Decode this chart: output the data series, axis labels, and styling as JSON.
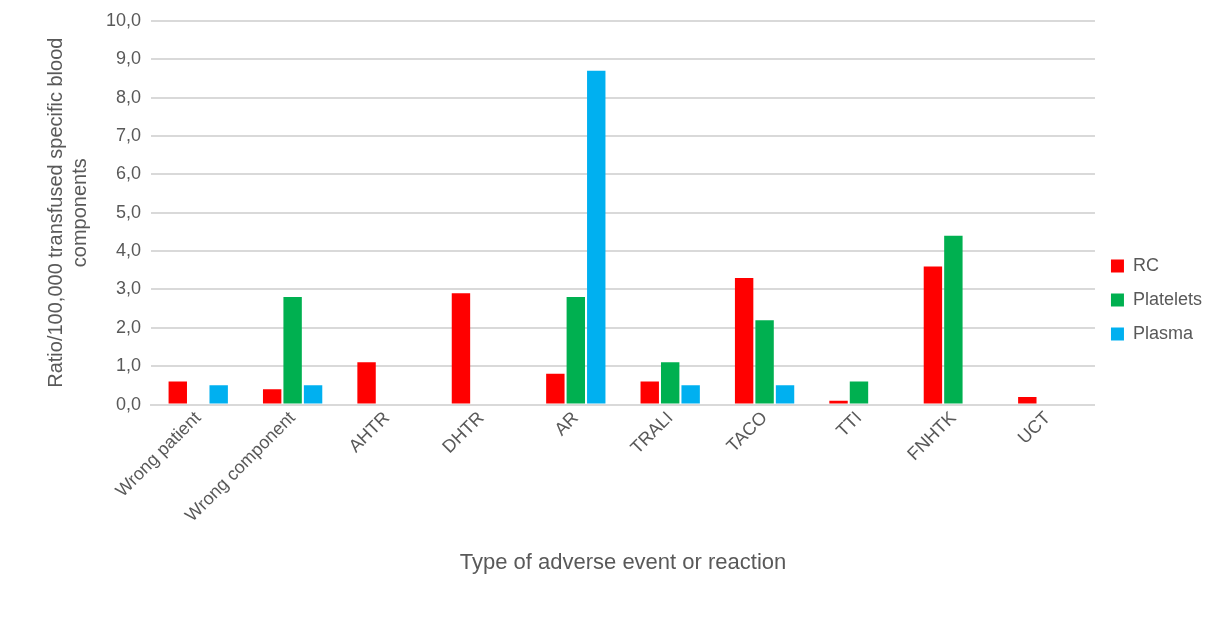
{
  "chart_data": {
    "type": "bar",
    "xlabel": "Type of adverse event or reaction",
    "ylabel": "Ratio/100,000 transfused specific blood components",
    "categories": [
      "Wrong patient",
      "Wrong component",
      "AHTR",
      "DHTR",
      "AR",
      "TRALI",
      "TACO",
      "TTI",
      "FNHTK",
      "UCT"
    ],
    "series": [
      {
        "name": "RC",
        "color": "#ff0000",
        "values": [
          0.6,
          0.4,
          1.1,
          2.9,
          0.8,
          0.6,
          3.3,
          0.1,
          3.6,
          0.2
        ]
      },
      {
        "name": "Platelets",
        "color": "#00b050",
        "values": [
          null,
          2.8,
          null,
          null,
          2.8,
          1.1,
          2.2,
          0.6,
          4.4,
          null
        ]
      },
      {
        "name": "Plasma",
        "color": "#00b0f0",
        "values": [
          0.5,
          0.5,
          null,
          null,
          8.7,
          0.5,
          0.5,
          null,
          null,
          null
        ]
      }
    ],
    "ylim": [
      0,
      10
    ],
    "yticks": [
      {
        "value": 0,
        "label": "0,0"
      },
      {
        "value": 1,
        "label": "1,0"
      },
      {
        "value": 2,
        "label": "2,0"
      },
      {
        "value": 3,
        "label": "3,0"
      },
      {
        "value": 4,
        "label": "4,0"
      },
      {
        "value": 5,
        "label": "5,0"
      },
      {
        "value": 6,
        "label": "6,0"
      },
      {
        "value": 7,
        "label": "7,0"
      },
      {
        "value": 8,
        "label": "8,0"
      },
      {
        "value": 9,
        "label": "9,0"
      },
      {
        "value": 10,
        "label": "10,0"
      }
    ],
    "grid": "y",
    "legend": "right"
  }
}
